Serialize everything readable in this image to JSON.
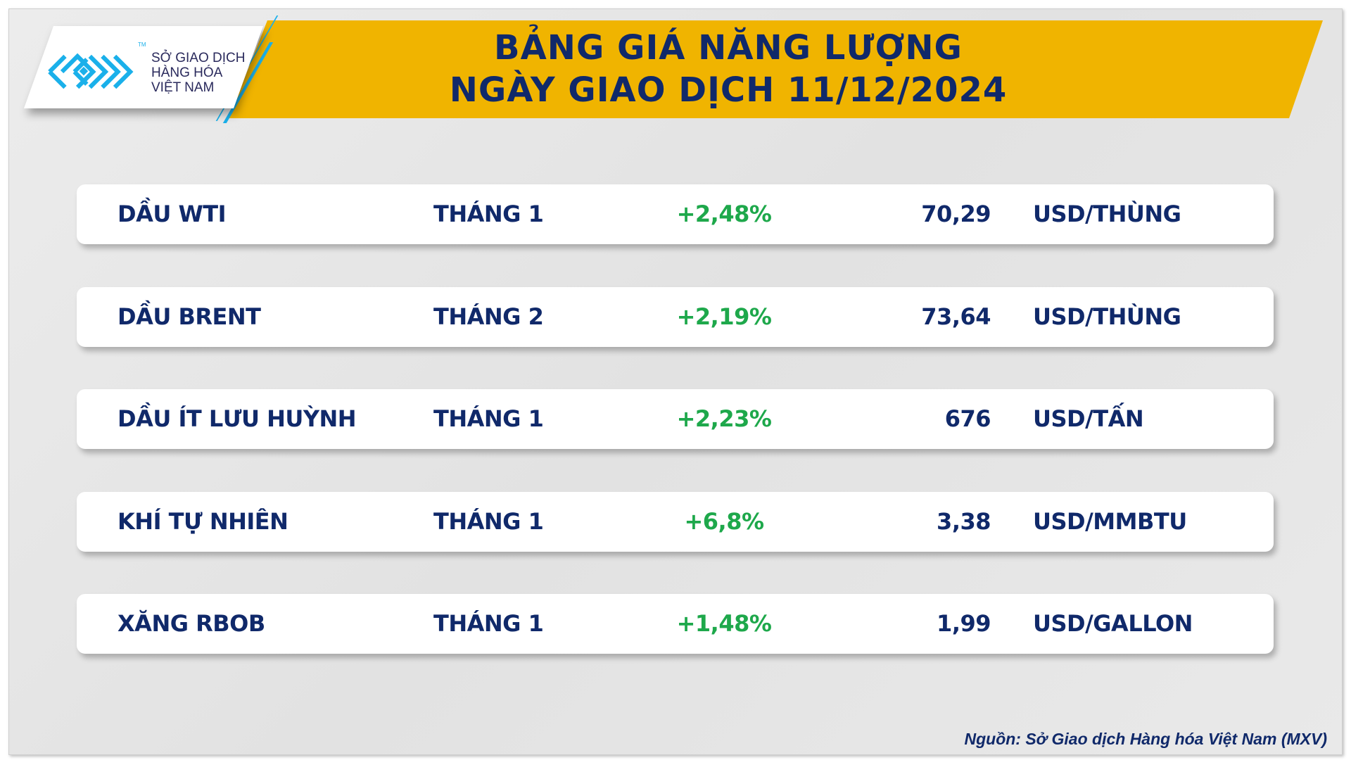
{
  "header": {
    "title_line1": "BẢNG GIÁ NĂNG LƯỢNG",
    "title_line2": "NGÀY GIAO DỊCH 11/12/2024"
  },
  "logo": {
    "line1": "SỞ GIAO DỊCH",
    "line2": "HÀNG HÓA",
    "line3": "VIỆT NAM",
    "tm": "TM"
  },
  "colors": {
    "banner": "#f0b400",
    "navy": "#10296a",
    "positive": "#1ea84b",
    "logo_blue": "#1ab0ea"
  },
  "rows": [
    {
      "name": "DẦU WTI",
      "month": "THÁNG 1",
      "change": "+2,48%",
      "price": "70,29",
      "unit": "USD/THÙNG"
    },
    {
      "name": "DẦU BRENT",
      "month": "THÁNG 2",
      "change": "+2,19%",
      "price": "73,64",
      "unit": "USD/THÙNG"
    },
    {
      "name": "DẦU ÍT LƯU HUỲNH",
      "month": "THÁNG 1",
      "change": "+2,23%",
      "price": "676",
      "unit": "USD/TẤN"
    },
    {
      "name": "KHÍ TỰ NHIÊN",
      "month": "THÁNG 1",
      "change": "+6,8%",
      "price": "3,38",
      "unit": "USD/MMBTU"
    },
    {
      "name": "XĂNG RBOB",
      "month": "THÁNG 1",
      "change": "+1,48%",
      "price": "1,99",
      "unit": "USD/GALLON"
    }
  ],
  "source": "Nguồn: Sở Giao dịch Hàng hóa Việt Nam (MXV)"
}
